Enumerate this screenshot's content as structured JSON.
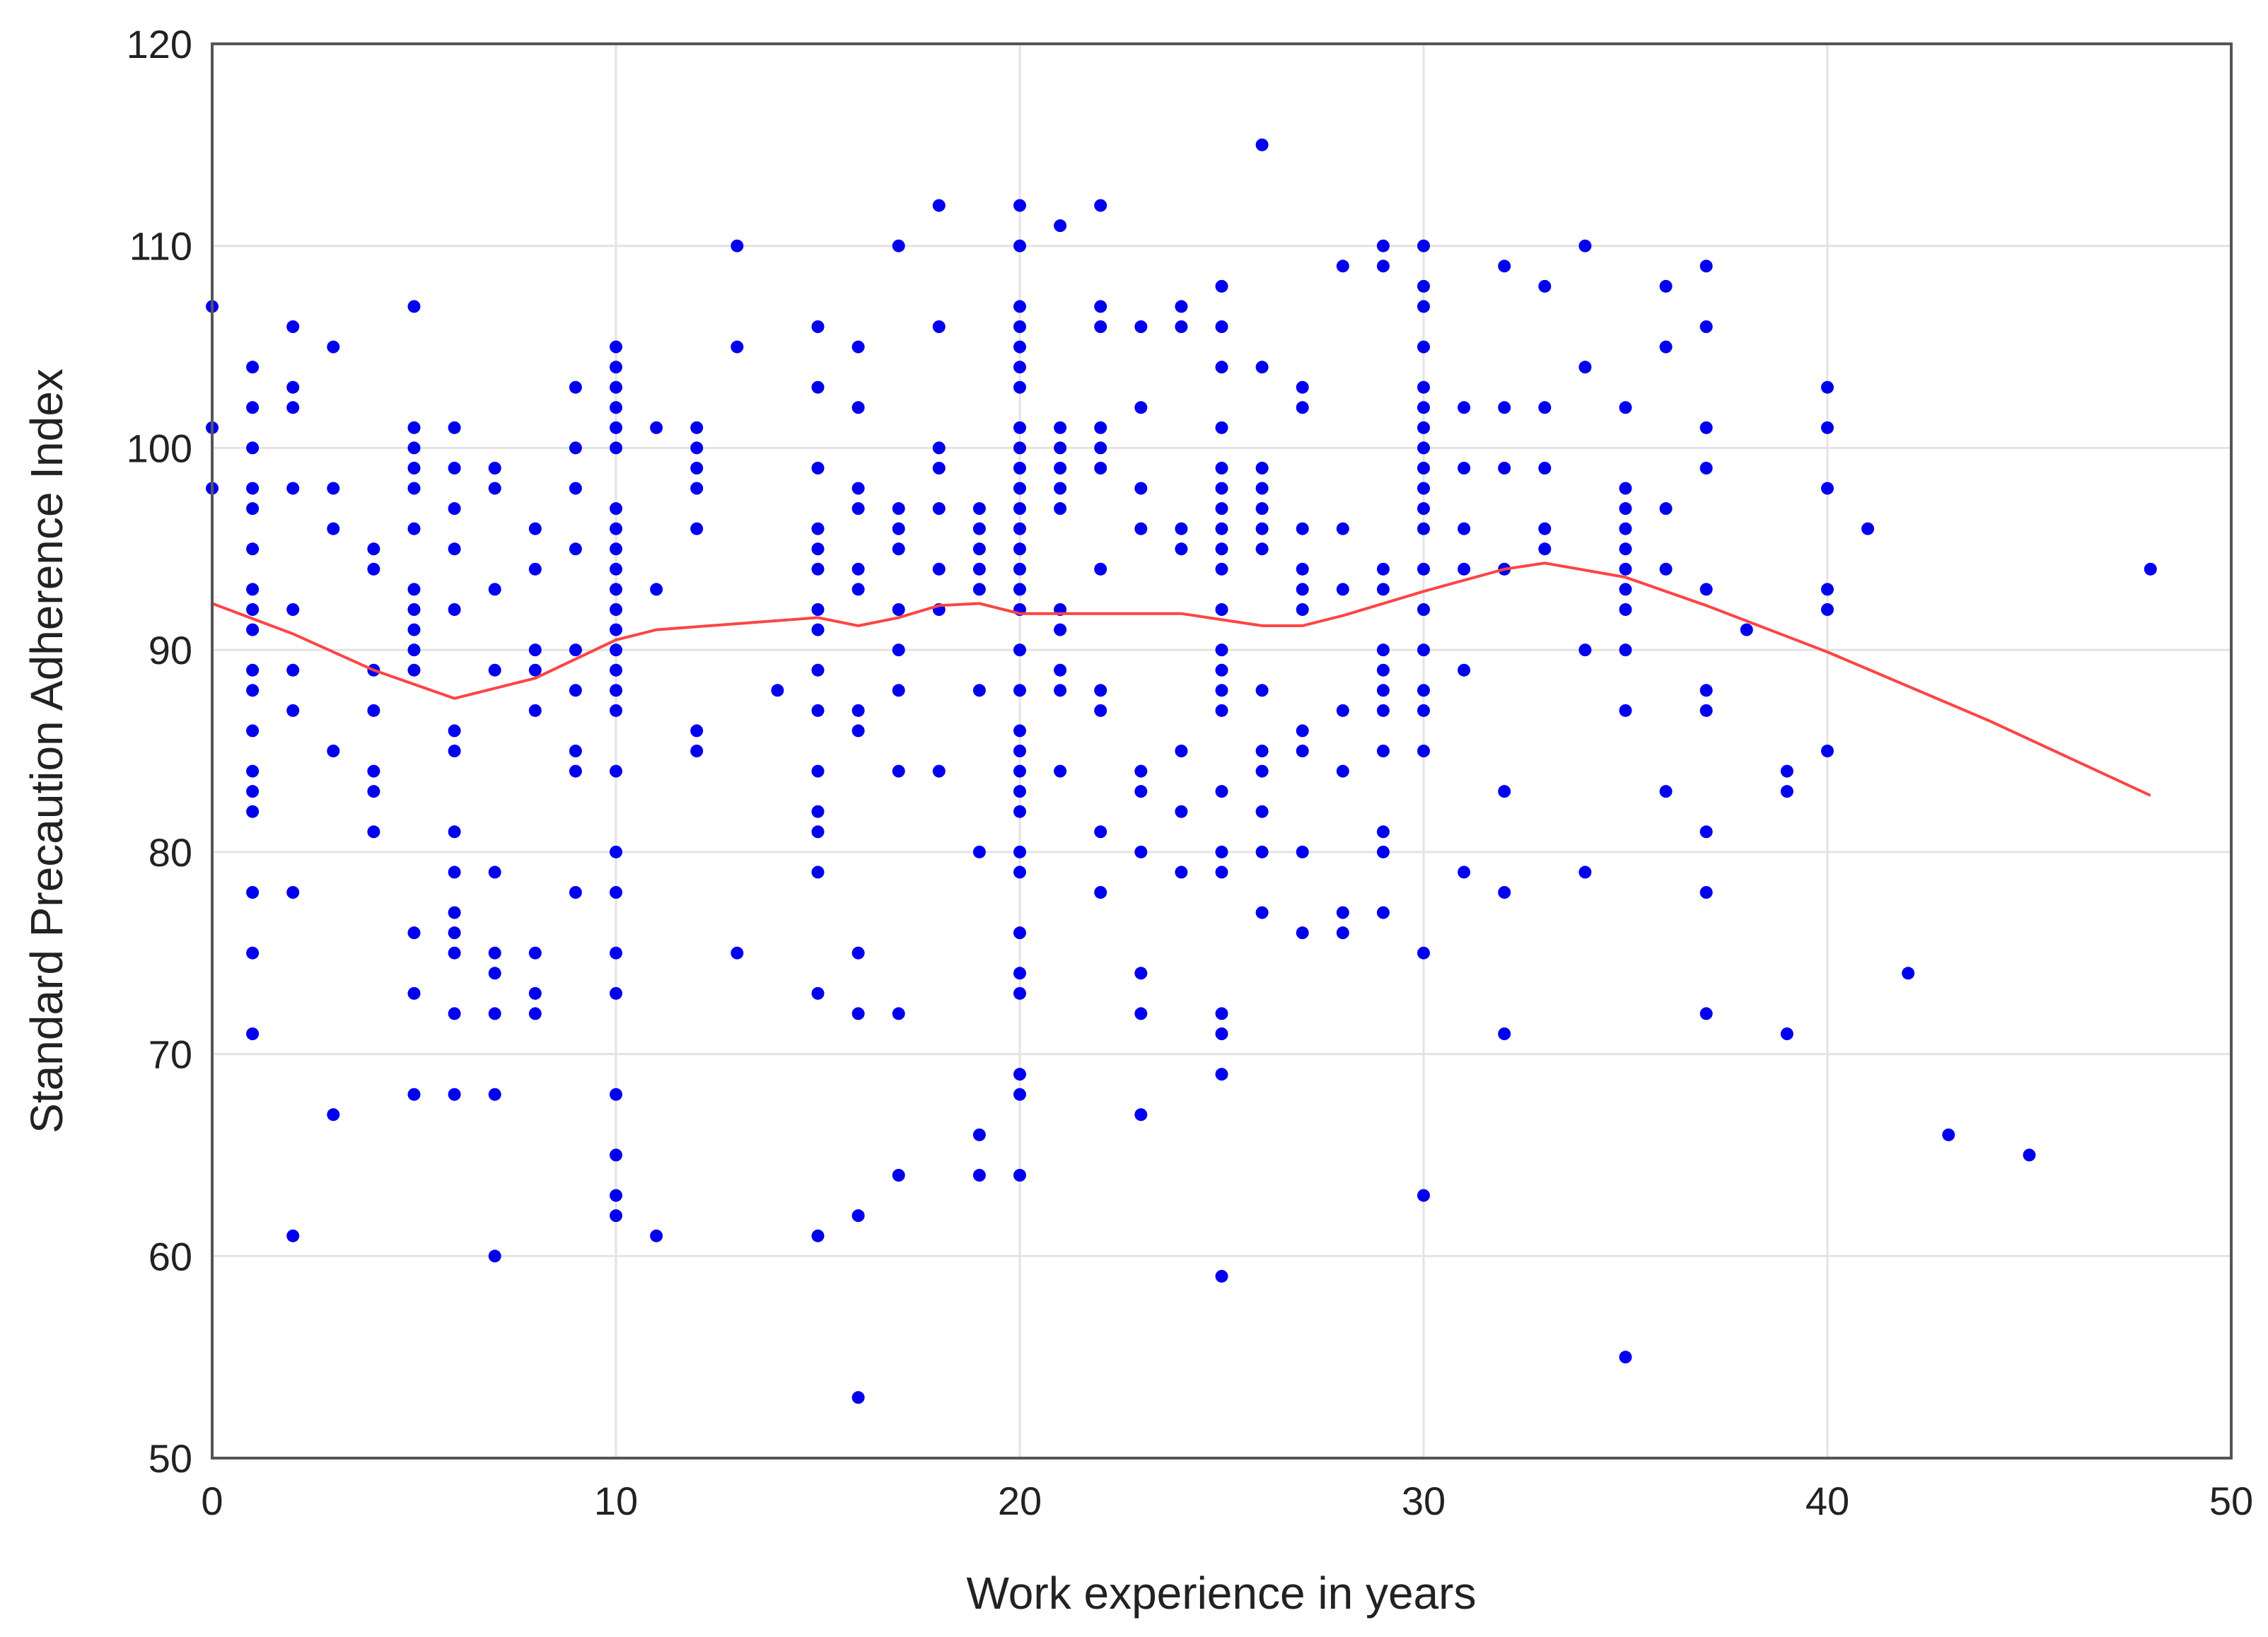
{
  "chart_data": {
    "type": "scatter",
    "title": "",
    "xlabel": "Work experience in years",
    "ylabel": "Standard Precaution Adherence Index",
    "xlim": [
      0,
      50
    ],
    "ylim": [
      50,
      120
    ],
    "xticks": [
      0,
      10,
      20,
      30,
      40,
      50
    ],
    "yticks": [
      50,
      60,
      70,
      80,
      90,
      100,
      110,
      120
    ],
    "grid": true,
    "colors": {
      "points": "#0000ee",
      "fit_line": "#ff4444",
      "grid": "#e3e3e3",
      "frame": "#555555"
    },
    "points": [
      [
        0,
        107
      ],
      [
        0,
        101
      ],
      [
        0,
        98
      ],
      [
        1,
        104
      ],
      [
        1,
        102
      ],
      [
        1,
        100
      ],
      [
        1,
        98
      ],
      [
        1,
        97
      ],
      [
        1,
        95
      ],
      [
        1,
        93
      ],
      [
        1,
        92
      ],
      [
        1,
        91
      ],
      [
        1,
        89
      ],
      [
        1,
        88
      ],
      [
        1,
        86
      ],
      [
        1,
        84
      ],
      [
        1,
        83
      ],
      [
        1,
        82
      ],
      [
        1,
        78
      ],
      [
        1,
        75
      ],
      [
        1,
        71
      ],
      [
        2,
        106
      ],
      [
        2,
        103
      ],
      [
        2,
        102
      ],
      [
        2,
        98
      ],
      [
        2,
        92
      ],
      [
        2,
        89
      ],
      [
        2,
        87
      ],
      [
        2,
        78
      ],
      [
        2,
        61
      ],
      [
        3,
        105
      ],
      [
        3,
        98
      ],
      [
        3,
        96
      ],
      [
        3,
        85
      ],
      [
        3,
        67
      ],
      [
        4,
        95
      ],
      [
        4,
        94
      ],
      [
        4,
        89
      ],
      [
        4,
        87
      ],
      [
        4,
        84
      ],
      [
        4,
        83
      ],
      [
        4,
        81
      ],
      [
        5,
        107
      ],
      [
        5,
        101
      ],
      [
        5,
        100
      ],
      [
        5,
        99
      ],
      [
        5,
        98
      ],
      [
        5,
        96
      ],
      [
        5,
        93
      ],
      [
        5,
        92
      ],
      [
        5,
        91
      ],
      [
        5,
        90
      ],
      [
        5,
        89
      ],
      [
        5,
        76
      ],
      [
        5,
        73
      ],
      [
        5,
        68
      ],
      [
        6,
        101
      ],
      [
        6,
        99
      ],
      [
        6,
        97
      ],
      [
        6,
        95
      ],
      [
        6,
        92
      ],
      [
        6,
        86
      ],
      [
        6,
        85
      ],
      [
        6,
        81
      ],
      [
        6,
        79
      ],
      [
        6,
        77
      ],
      [
        6,
        76
      ],
      [
        6,
        75
      ],
      [
        6,
        72
      ],
      [
        6,
        68
      ],
      [
        7,
        99
      ],
      [
        7,
        98
      ],
      [
        7,
        93
      ],
      [
        7,
        89
      ],
      [
        7,
        79
      ],
      [
        7,
        75
      ],
      [
        7,
        74
      ],
      [
        7,
        72
      ],
      [
        7,
        68
      ],
      [
        7,
        60
      ],
      [
        8,
        96
      ],
      [
        8,
        94
      ],
      [
        8,
        90
      ],
      [
        8,
        89
      ],
      [
        8,
        87
      ],
      [
        8,
        75
      ],
      [
        8,
        73
      ],
      [
        8,
        72
      ],
      [
        9,
        103
      ],
      [
        9,
        100
      ],
      [
        9,
        98
      ],
      [
        9,
        95
      ],
      [
        9,
        90
      ],
      [
        9,
        88
      ],
      [
        9,
        85
      ],
      [
        9,
        84
      ],
      [
        9,
        78
      ],
      [
        10,
        105
      ],
      [
        10,
        104
      ],
      [
        10,
        103
      ],
      [
        10,
        102
      ],
      [
        10,
        101
      ],
      [
        10,
        100
      ],
      [
        10,
        97
      ],
      [
        10,
        96
      ],
      [
        10,
        95
      ],
      [
        10,
        94
      ],
      [
        10,
        93
      ],
      [
        10,
        92
      ],
      [
        10,
        91
      ],
      [
        10,
        90
      ],
      [
        10,
        89
      ],
      [
        10,
        88
      ],
      [
        10,
        87
      ],
      [
        10,
        84
      ],
      [
        10,
        80
      ],
      [
        10,
        78
      ],
      [
        10,
        75
      ],
      [
        10,
        73
      ],
      [
        10,
        68
      ],
      [
        10,
        65
      ],
      [
        10,
        63
      ],
      [
        10,
        62
      ],
      [
        11,
        101
      ],
      [
        11,
        93
      ],
      [
        11,
        61
      ],
      [
        12,
        101
      ],
      [
        12,
        100
      ],
      [
        12,
        99
      ],
      [
        12,
        98
      ],
      [
        12,
        96
      ],
      [
        12,
        86
      ],
      [
        12,
        85
      ],
      [
        13,
        110
      ],
      [
        13,
        105
      ],
      [
        13,
        75
      ],
      [
        14,
        88
      ],
      [
        15,
        106
      ],
      [
        15,
        103
      ],
      [
        15,
        99
      ],
      [
        15,
        96
      ],
      [
        15,
        95
      ],
      [
        15,
        94
      ],
      [
        15,
        92
      ],
      [
        15,
        91
      ],
      [
        15,
        89
      ],
      [
        15,
        87
      ],
      [
        15,
        84
      ],
      [
        15,
        82
      ],
      [
        15,
        81
      ],
      [
        15,
        79
      ],
      [
        15,
        73
      ],
      [
        15,
        61
      ],
      [
        16,
        105
      ],
      [
        16,
        102
      ],
      [
        16,
        98
      ],
      [
        16,
        97
      ],
      [
        16,
        94
      ],
      [
        16,
        93
      ],
      [
        16,
        87
      ],
      [
        16,
        86
      ],
      [
        16,
        75
      ],
      [
        16,
        72
      ],
      [
        16,
        62
      ],
      [
        16,
        53
      ],
      [
        17,
        110
      ],
      [
        17,
        97
      ],
      [
        17,
        96
      ],
      [
        17,
        95
      ],
      [
        17,
        92
      ],
      [
        17,
        90
      ],
      [
        17,
        88
      ],
      [
        17,
        84
      ],
      [
        17,
        72
      ],
      [
        17,
        64
      ],
      [
        18,
        112
      ],
      [
        18,
        106
      ],
      [
        18,
        100
      ],
      [
        18,
        99
      ],
      [
        18,
        97
      ],
      [
        18,
        94
      ],
      [
        18,
        92
      ],
      [
        18,
        84
      ],
      [
        19,
        97
      ],
      [
        19,
        96
      ],
      [
        19,
        95
      ],
      [
        19,
        94
      ],
      [
        19,
        93
      ],
      [
        19,
        88
      ],
      [
        19,
        80
      ],
      [
        19,
        66
      ],
      [
        19,
        64
      ],
      [
        20,
        112
      ],
      [
        20,
        110
      ],
      [
        20,
        107
      ],
      [
        20,
        106
      ],
      [
        20,
        105
      ],
      [
        20,
        104
      ],
      [
        20,
        103
      ],
      [
        20,
        101
      ],
      [
        20,
        100
      ],
      [
        20,
        99
      ],
      [
        20,
        98
      ],
      [
        20,
        97
      ],
      [
        20,
        96
      ],
      [
        20,
        95
      ],
      [
        20,
        94
      ],
      [
        20,
        93
      ],
      [
        20,
        92
      ],
      [
        20,
        90
      ],
      [
        20,
        88
      ],
      [
        20,
        86
      ],
      [
        20,
        85
      ],
      [
        20,
        84
      ],
      [
        20,
        83
      ],
      [
        20,
        82
      ],
      [
        20,
        80
      ],
      [
        20,
        79
      ],
      [
        20,
        76
      ],
      [
        20,
        74
      ],
      [
        20,
        73
      ],
      [
        20,
        69
      ],
      [
        20,
        68
      ],
      [
        20,
        64
      ],
      [
        21,
        111
      ],
      [
        21,
        101
      ],
      [
        21,
        100
      ],
      [
        21,
        99
      ],
      [
        21,
        98
      ],
      [
        21,
        97
      ],
      [
        21,
        92
      ],
      [
        21,
        91
      ],
      [
        21,
        89
      ],
      [
        21,
        88
      ],
      [
        21,
        84
      ],
      [
        22,
        112
      ],
      [
        22,
        107
      ],
      [
        22,
        106
      ],
      [
        22,
        101
      ],
      [
        22,
        100
      ],
      [
        22,
        99
      ],
      [
        22,
        94
      ],
      [
        22,
        88
      ],
      [
        22,
        87
      ],
      [
        22,
        81
      ],
      [
        22,
        78
      ],
      [
        23,
        106
      ],
      [
        23,
        102
      ],
      [
        23,
        98
      ],
      [
        23,
        96
      ],
      [
        23,
        84
      ],
      [
        23,
        83
      ],
      [
        23,
        80
      ],
      [
        23,
        74
      ],
      [
        23,
        72
      ],
      [
        23,
        67
      ],
      [
        24,
        107
      ],
      [
        24,
        106
      ],
      [
        24,
        96
      ],
      [
        24,
        95
      ],
      [
        24,
        85
      ],
      [
        24,
        82
      ],
      [
        24,
        79
      ],
      [
        25,
        108
      ],
      [
        25,
        106
      ],
      [
        25,
        104
      ],
      [
        25,
        101
      ],
      [
        25,
        99
      ],
      [
        25,
        98
      ],
      [
        25,
        97
      ],
      [
        25,
        96
      ],
      [
        25,
        95
      ],
      [
        25,
        94
      ],
      [
        25,
        92
      ],
      [
        25,
        90
      ],
      [
        25,
        89
      ],
      [
        25,
        88
      ],
      [
        25,
        87
      ],
      [
        25,
        83
      ],
      [
        25,
        80
      ],
      [
        25,
        79
      ],
      [
        25,
        72
      ],
      [
        25,
        71
      ],
      [
        25,
        69
      ],
      [
        25,
        59
      ],
      [
        26,
        115
      ],
      [
        26,
        104
      ],
      [
        26,
        99
      ],
      [
        26,
        98
      ],
      [
        26,
        97
      ],
      [
        26,
        96
      ],
      [
        26,
        95
      ],
      [
        26,
        88
      ],
      [
        26,
        85
      ],
      [
        26,
        84
      ],
      [
        26,
        82
      ],
      [
        26,
        80
      ],
      [
        26,
        77
      ],
      [
        27,
        103
      ],
      [
        27,
        102
      ],
      [
        27,
        96
      ],
      [
        27,
        94
      ],
      [
        27,
        93
      ],
      [
        27,
        92
      ],
      [
        27,
        86
      ],
      [
        27,
        85
      ],
      [
        27,
        80
      ],
      [
        27,
        76
      ],
      [
        28,
        109
      ],
      [
        28,
        96
      ],
      [
        28,
        93
      ],
      [
        28,
        87
      ],
      [
        28,
        84
      ],
      [
        28,
        77
      ],
      [
        28,
        76
      ],
      [
        29,
        110
      ],
      [
        29,
        109
      ],
      [
        29,
        94
      ],
      [
        29,
        93
      ],
      [
        29,
        90
      ],
      [
        29,
        89
      ],
      [
        29,
        88
      ],
      [
        29,
        87
      ],
      [
        29,
        85
      ],
      [
        29,
        81
      ],
      [
        29,
        80
      ],
      [
        29,
        77
      ],
      [
        30,
        110
      ],
      [
        30,
        108
      ],
      [
        30,
        107
      ],
      [
        30,
        105
      ],
      [
        30,
        103
      ],
      [
        30,
        102
      ],
      [
        30,
        101
      ],
      [
        30,
        100
      ],
      [
        30,
        99
      ],
      [
        30,
        98
      ],
      [
        30,
        97
      ],
      [
        30,
        96
      ],
      [
        30,
        94
      ],
      [
        30,
        92
      ],
      [
        30,
        90
      ],
      [
        30,
        88
      ],
      [
        30,
        87
      ],
      [
        30,
        85
      ],
      [
        30,
        75
      ],
      [
        30,
        63
      ],
      [
        31,
        102
      ],
      [
        31,
        99
      ],
      [
        31,
        96
      ],
      [
        31,
        94
      ],
      [
        31,
        89
      ],
      [
        31,
        79
      ],
      [
        32,
        109
      ],
      [
        32,
        102
      ],
      [
        32,
        99
      ],
      [
        32,
        94
      ],
      [
        32,
        83
      ],
      [
        32,
        78
      ],
      [
        32,
        71
      ],
      [
        33,
        108
      ],
      [
        33,
        102
      ],
      [
        33,
        99
      ],
      [
        33,
        96
      ],
      [
        33,
        95
      ],
      [
        34,
        110
      ],
      [
        34,
        104
      ],
      [
        34,
        90
      ],
      [
        34,
        79
      ],
      [
        35,
        102
      ],
      [
        35,
        98
      ],
      [
        35,
        97
      ],
      [
        35,
        96
      ],
      [
        35,
        95
      ],
      [
        35,
        94
      ],
      [
        35,
        93
      ],
      [
        35,
        92
      ],
      [
        35,
        90
      ],
      [
        35,
        87
      ],
      [
        35,
        55
      ],
      [
        36,
        108
      ],
      [
        36,
        105
      ],
      [
        36,
        97
      ],
      [
        36,
        94
      ],
      [
        36,
        83
      ],
      [
        37,
        109
      ],
      [
        37,
        106
      ],
      [
        37,
        101
      ],
      [
        37,
        99
      ],
      [
        37,
        93
      ],
      [
        37,
        88
      ],
      [
        37,
        87
      ],
      [
        37,
        81
      ],
      [
        37,
        78
      ],
      [
        37,
        72
      ],
      [
        38,
        91
      ],
      [
        39,
        84
      ],
      [
        39,
        83
      ],
      [
        39,
        71
      ],
      [
        40,
        103
      ],
      [
        40,
        101
      ],
      [
        40,
        98
      ],
      [
        40,
        93
      ],
      [
        40,
        92
      ],
      [
        40,
        85
      ],
      [
        41,
        96
      ],
      [
        42,
        74
      ],
      [
        43,
        66
      ],
      [
        45,
        65
      ],
      [
        48,
        94
      ]
    ],
    "fit_line": [
      [
        0,
        92.3
      ],
      [
        2,
        90.8
      ],
      [
        4,
        89.0
      ],
      [
        6,
        87.6
      ],
      [
        8,
        88.6
      ],
      [
        10,
        90.5
      ],
      [
        11,
        91.0
      ],
      [
        13,
        91.3
      ],
      [
        15,
        91.6
      ],
      [
        16,
        91.2
      ],
      [
        17,
        91.6
      ],
      [
        18,
        92.2
      ],
      [
        19,
        92.3
      ],
      [
        20,
        91.8
      ],
      [
        22,
        91.8
      ],
      [
        24,
        91.8
      ],
      [
        26,
        91.2
      ],
      [
        27,
        91.2
      ],
      [
        28,
        91.7
      ],
      [
        30,
        92.9
      ],
      [
        32,
        94.0
      ],
      [
        33,
        94.3
      ],
      [
        35,
        93.6
      ],
      [
        37,
        92.2
      ],
      [
        40,
        89.9
      ],
      [
        44,
        86.5
      ],
      [
        48,
        82.8
      ]
    ]
  }
}
